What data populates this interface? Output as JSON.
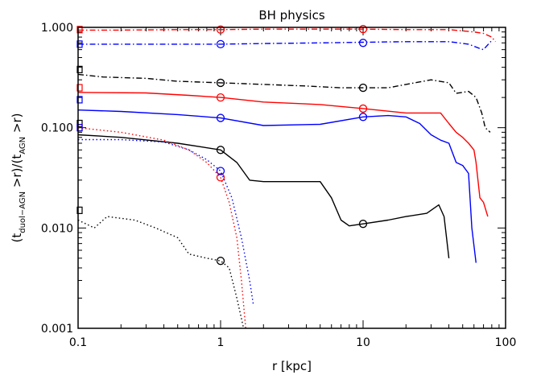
{
  "chart_data": {
    "type": "line",
    "title": "BH physics",
    "xlabel": "r [kpc]",
    "ylabel": "(t_duol-AGN >r)/(t_AGN >r)",
    "ylabel_parts": [
      "(t",
      "duol−AGN",
      " >r)/(t",
      "AGN",
      " >r)"
    ],
    "x_scale": "log",
    "y_scale": "log",
    "xlim": [
      0.1,
      100
    ],
    "ylim": [
      0.001,
      1.0
    ],
    "x_ticks": [
      {
        "value": 0.1,
        "label": "0.1"
      },
      {
        "value": 1,
        "label": "1"
      },
      {
        "value": 10,
        "label": "10"
      },
      {
        "value": 100,
        "label": "100"
      }
    ],
    "y_ticks": [
      {
        "value": 0.001,
        "label": "0.001"
      },
      {
        "value": 0.01,
        "label": "0.010"
      },
      {
        "value": 0.1,
        "label": "0.100"
      },
      {
        "value": 1.0,
        "label": "1.000"
      }
    ],
    "series": [
      {
        "color": "#ff0000",
        "dash": "dashdot",
        "marker_square": 0.95,
        "circle_marks": [
          [
            1,
            0.95
          ],
          [
            10,
            0.96
          ]
        ],
        "points": [
          [
            0.1,
            0.94
          ],
          [
            0.2,
            0.94
          ],
          [
            0.5,
            0.95
          ],
          [
            1,
            0.95
          ],
          [
            2,
            0.96
          ],
          [
            5,
            0.96
          ],
          [
            10,
            0.96
          ],
          [
            20,
            0.95
          ],
          [
            40,
            0.95
          ],
          [
            60,
            0.9
          ],
          [
            70,
            0.87
          ],
          [
            80,
            0.8
          ],
          [
            85,
            0.72
          ]
        ]
      },
      {
        "color": "#0000ff",
        "dash": "dashdot",
        "marker_square": 0.68,
        "circle_marks": [
          [
            1,
            0.68
          ],
          [
            10,
            0.7
          ]
        ],
        "points": [
          [
            0.1,
            0.68
          ],
          [
            0.2,
            0.68
          ],
          [
            0.5,
            0.68
          ],
          [
            1,
            0.68
          ],
          [
            2,
            0.69
          ],
          [
            5,
            0.7
          ],
          [
            10,
            0.71
          ],
          [
            20,
            0.72
          ],
          [
            40,
            0.72
          ],
          [
            55,
            0.68
          ],
          [
            65,
            0.62
          ],
          [
            70,
            0.6
          ],
          [
            75,
            0.67
          ],
          [
            80,
            0.74
          ]
        ]
      },
      {
        "color": "#000000",
        "dash": "dashdot",
        "marker_square": 0.38,
        "circle_marks": [
          [
            1,
            0.28
          ],
          [
            10,
            0.25
          ]
        ],
        "points": [
          [
            0.1,
            0.34
          ],
          [
            0.15,
            0.32
          ],
          [
            0.3,
            0.31
          ],
          [
            0.5,
            0.29
          ],
          [
            1,
            0.28
          ],
          [
            2,
            0.27
          ],
          [
            4,
            0.26
          ],
          [
            7,
            0.25
          ],
          [
            10,
            0.25
          ],
          [
            15,
            0.25
          ],
          [
            20,
            0.27
          ],
          [
            30,
            0.3
          ],
          [
            40,
            0.28
          ],
          [
            45,
            0.22
          ],
          [
            55,
            0.23
          ],
          [
            62,
            0.2
          ],
          [
            68,
            0.14
          ],
          [
            72,
            0.1
          ],
          [
            78,
            0.09
          ]
        ]
      },
      {
        "color": "#ff0000",
        "dash": "solid",
        "marker_square": 0.25,
        "circle_marks": [
          [
            1,
            0.2
          ],
          [
            10,
            0.155
          ]
        ],
        "points": [
          [
            0.1,
            0.225
          ],
          [
            0.3,
            0.222
          ],
          [
            0.6,
            0.21
          ],
          [
            1,
            0.2
          ],
          [
            2,
            0.18
          ],
          [
            5,
            0.17
          ],
          [
            10,
            0.155
          ],
          [
            20,
            0.14
          ],
          [
            35,
            0.14
          ],
          [
            40,
            0.11
          ],
          [
            45,
            0.09
          ],
          [
            50,
            0.08
          ],
          [
            55,
            0.07
          ],
          [
            60,
            0.06
          ],
          [
            62,
            0.045
          ],
          [
            66,
            0.02
          ],
          [
            70,
            0.018
          ],
          [
            75,
            0.013
          ]
        ]
      },
      {
        "color": "#0000ff",
        "dash": "solid",
        "marker_square": 0.19,
        "circle_marks": [
          [
            1,
            0.125
          ],
          [
            10,
            0.128
          ]
        ],
        "points": [
          [
            0.1,
            0.15
          ],
          [
            0.2,
            0.145
          ],
          [
            0.5,
            0.135
          ],
          [
            1,
            0.125
          ],
          [
            2,
            0.105
          ],
          [
            5,
            0.108
          ],
          [
            10,
            0.128
          ],
          [
            15,
            0.132
          ],
          [
            20,
            0.128
          ],
          [
            25,
            0.11
          ],
          [
            30,
            0.085
          ],
          [
            35,
            0.075
          ],
          [
            40,
            0.07
          ],
          [
            45,
            0.045
          ],
          [
            50,
            0.042
          ],
          [
            55,
            0.035
          ],
          [
            58,
            0.01
          ],
          [
            62,
            0.0045
          ]
        ]
      },
      {
        "color": "#000000",
        "dash": "solid",
        "marker_square": 0.11,
        "circle_marks": [
          [
            1,
            0.06
          ],
          [
            10,
            0.011
          ]
        ],
        "points": [
          [
            0.1,
            0.085
          ],
          [
            0.2,
            0.08
          ],
          [
            0.5,
            0.07
          ],
          [
            1,
            0.06
          ],
          [
            1.3,
            0.045
          ],
          [
            1.6,
            0.03
          ],
          [
            2,
            0.029
          ],
          [
            3,
            0.029
          ],
          [
            5,
            0.029
          ],
          [
            6,
            0.02
          ],
          [
            7,
            0.012
          ],
          [
            8,
            0.0105
          ],
          [
            10,
            0.011
          ],
          [
            15,
            0.012
          ],
          [
            20,
            0.013
          ],
          [
            28,
            0.014
          ],
          [
            34,
            0.017
          ],
          [
            37,
            0.013
          ],
          [
            40,
            0.005
          ]
        ]
      },
      {
        "color": "#ff0000",
        "dash": "dotted",
        "marker_square": 0.1,
        "circle_marks": [
          [
            1,
            0.032
          ]
        ],
        "points": [
          [
            0.1,
            0.1
          ],
          [
            0.2,
            0.09
          ],
          [
            0.4,
            0.075
          ],
          [
            0.6,
            0.06
          ],
          [
            0.8,
            0.045
          ],
          [
            1,
            0.032
          ],
          [
            1.15,
            0.018
          ],
          [
            1.3,
            0.008
          ],
          [
            1.4,
            0.003
          ],
          [
            1.5,
            0.001
          ]
        ]
      },
      {
        "color": "#0000ff",
        "dash": "dotted",
        "marker_square": 0.1,
        "circle_marks": [
          [
            1,
            0.037
          ]
        ],
        "points": [
          [
            0.1,
            0.076
          ],
          [
            0.2,
            0.076
          ],
          [
            0.4,
            0.072
          ],
          [
            0.6,
            0.06
          ],
          [
            0.8,
            0.048
          ],
          [
            1,
            0.037
          ],
          [
            1.2,
            0.02
          ],
          [
            1.4,
            0.008
          ],
          [
            1.6,
            0.003
          ],
          [
            1.7,
            0.0017
          ]
        ]
      },
      {
        "color": "#000000",
        "dash": "dotted",
        "marker_square": 0.015,
        "circle_marks": [
          [
            1,
            0.0047
          ]
        ],
        "points": [
          [
            0.1,
            0.012
          ],
          [
            0.13,
            0.01
          ],
          [
            0.16,
            0.013
          ],
          [
            0.25,
            0.012
          ],
          [
            0.35,
            0.01
          ],
          [
            0.5,
            0.008
          ],
          [
            0.6,
            0.0055
          ],
          [
            0.8,
            0.005
          ],
          [
            1,
            0.0047
          ],
          [
            1.15,
            0.004
          ],
          [
            1.3,
            0.002
          ],
          [
            1.45,
            0.001
          ]
        ]
      }
    ]
  }
}
